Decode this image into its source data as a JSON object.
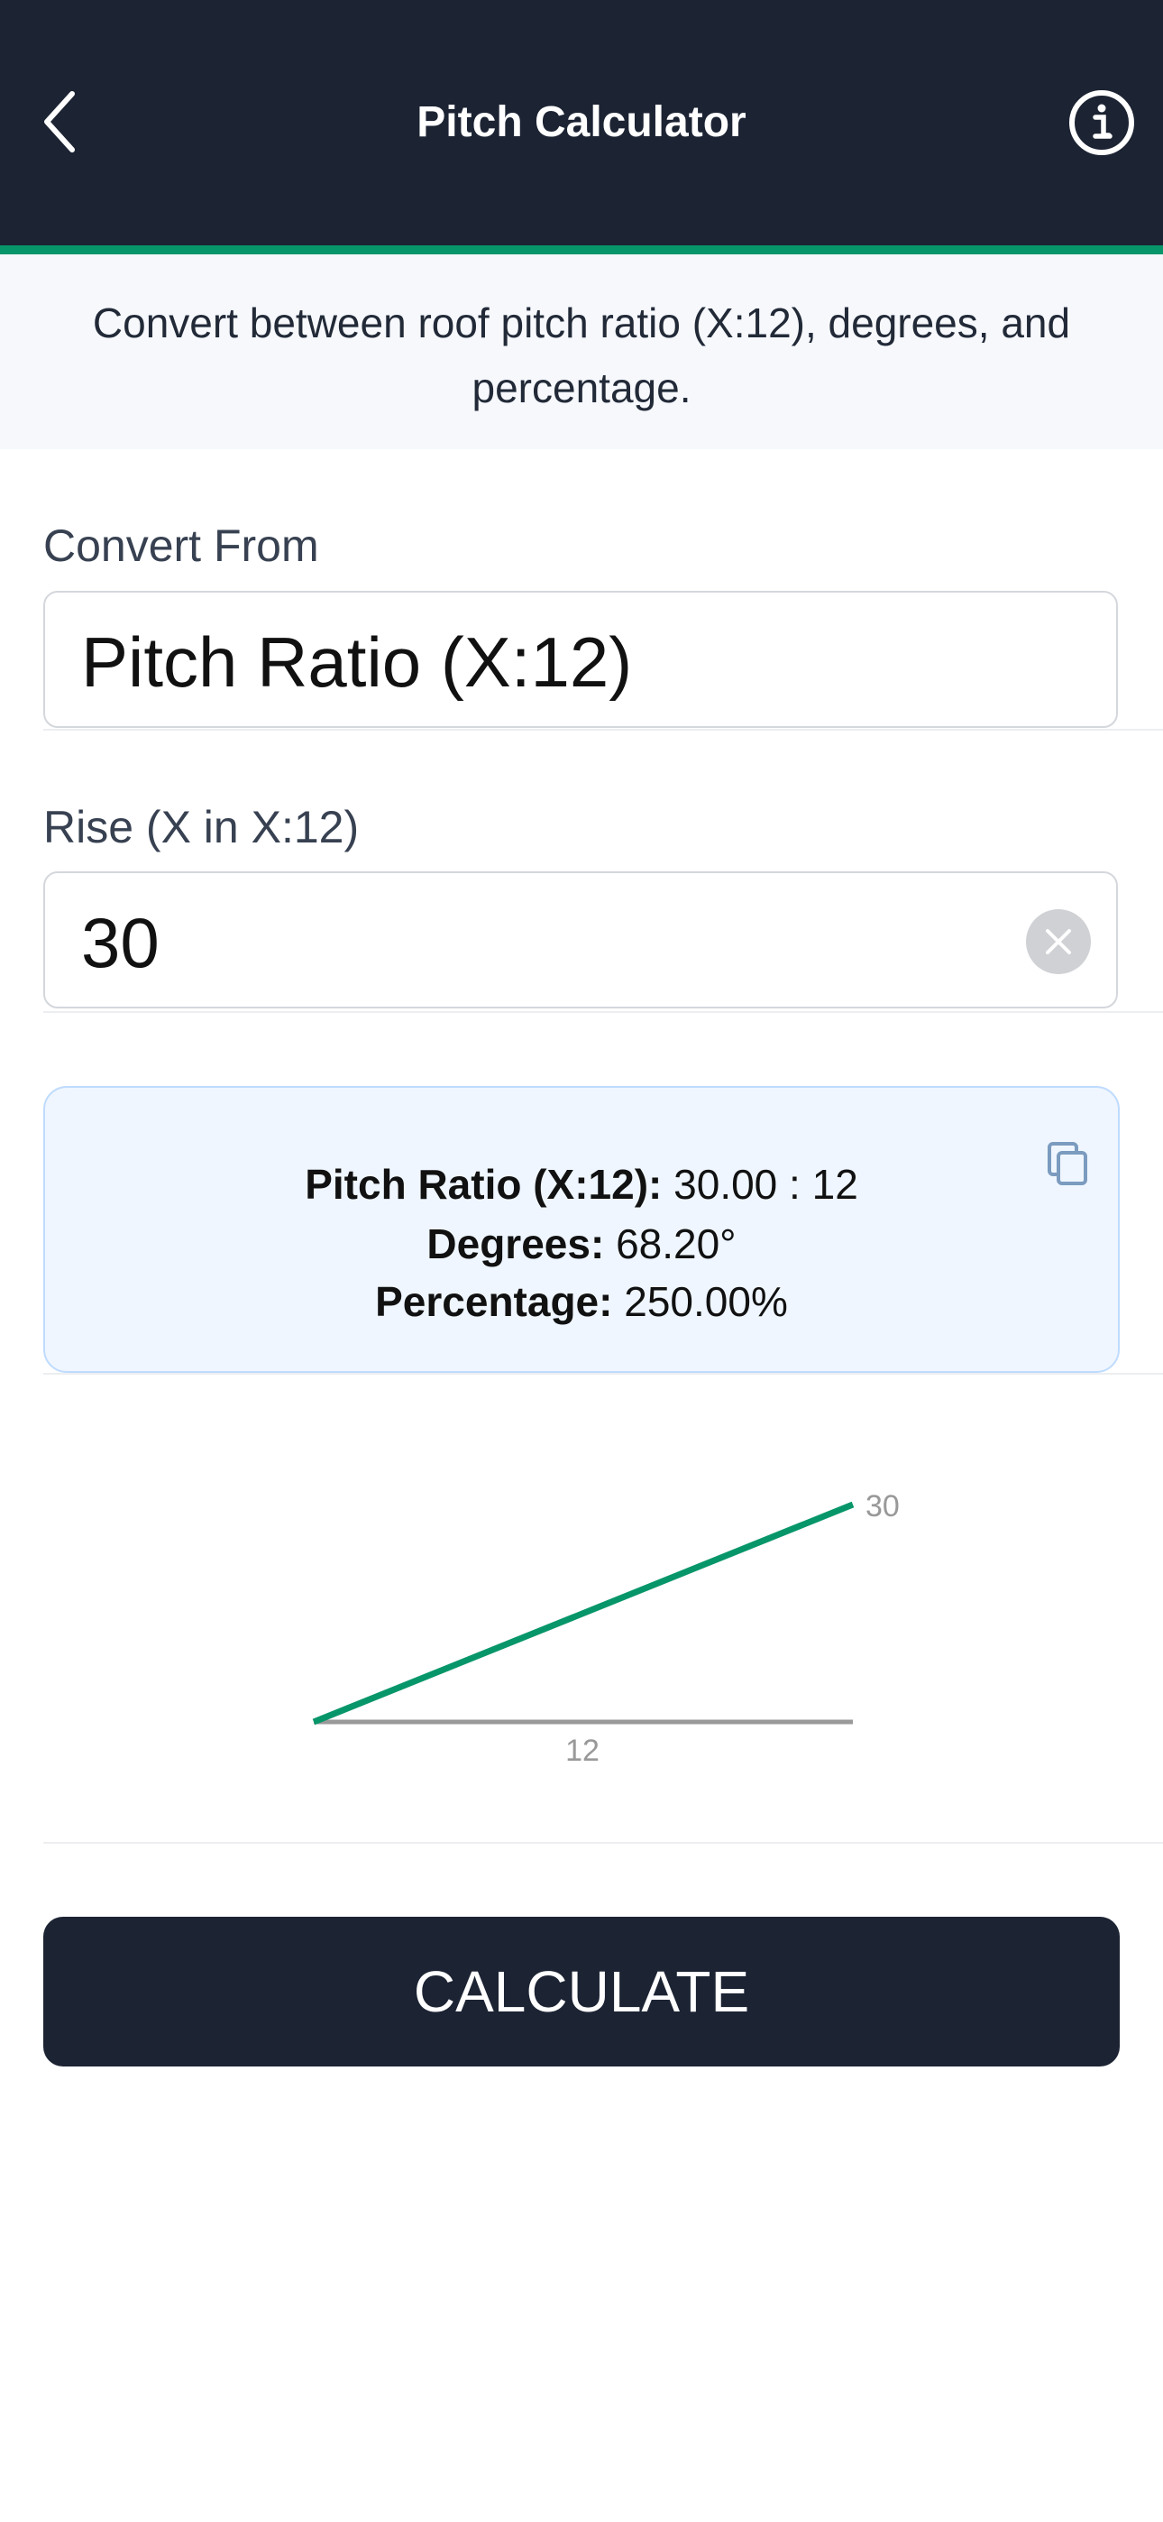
{
  "header": {
    "title": "Pitch Calculator",
    "back_icon": "chevron-left-icon",
    "info_icon": "info-circle-icon"
  },
  "colors": {
    "header_bg": "#1c2333",
    "accent": "#079669",
    "result_bg": "#eff6ff",
    "result_border": "#bfdbfe"
  },
  "subtitle": "Convert between roof pitch ratio (X:12), degrees, and percentage.",
  "convert_from": {
    "label": "Convert From",
    "value": "Pitch Ratio (X:12)"
  },
  "rise": {
    "label": "Rise (X in X:12)",
    "value": "30",
    "clear_icon": "clear-circle-icon"
  },
  "result": {
    "pitch_label": "Pitch Ratio (X:12):",
    "pitch_value": "30.00 : 12",
    "degrees_label": "Degrees:",
    "degrees_value": "68.20°",
    "percentage_label": "Percentage:",
    "percentage_value": "250.00%",
    "copy_icon": "copy-icon"
  },
  "diagram": {
    "rise_label": "30",
    "run_label": "12"
  },
  "calculate_label": "CALCULATE"
}
